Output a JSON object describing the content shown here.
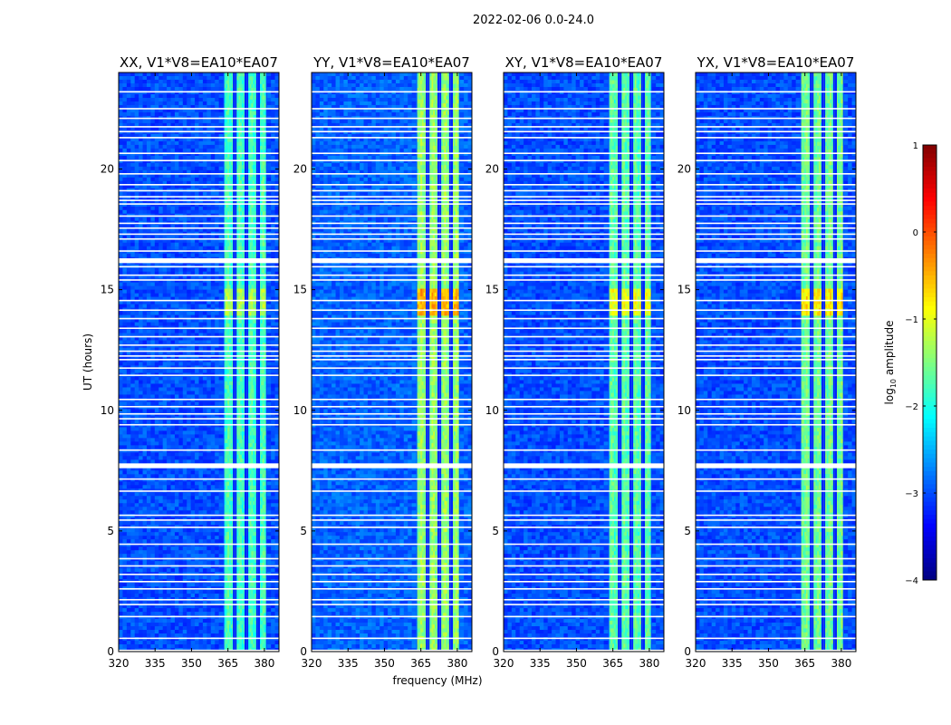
{
  "suptitle": "2022-02-06 0.0-24.0",
  "chart_data": [
    {
      "type": "heatmap",
      "panel": "XX",
      "title": "XX, V1*V8=EA10*EA07",
      "xlabel": "",
      "ylabel": "UT (hours)",
      "xlim": [
        320,
        386
      ],
      "ylim": [
        0,
        24
      ],
      "xticks": [
        320,
        335,
        350,
        365,
        380
      ],
      "yticks": [
        0,
        5,
        10,
        15,
        20
      ],
      "signal_band_mhz": [
        363.5,
        380.5
      ],
      "channel_gaps_mhz": [
        367.4,
        368.2,
        372.2,
        373.0,
        377.0,
        377.8
      ],
      "background_log10_amplitude": -3.0,
      "band_log10_amplitude": -1.8,
      "peak_log10_amplitude": -1.3,
      "peak_ut_hours": [
        14.0,
        15.0
      ],
      "flagged_ut_hours": [
        [
          7.6,
          7.8
        ],
        [
          16.1,
          16.3
        ]
      ],
      "seed": 11
    },
    {
      "type": "heatmap",
      "panel": "YY",
      "title": "YY, V1*V8=EA10*EA07",
      "xlabel": "frequency (MHz)",
      "ylabel": "",
      "xlim": [
        320,
        386
      ],
      "ylim": [
        0,
        24
      ],
      "xticks": [
        320,
        335,
        350,
        365,
        380
      ],
      "yticks": [
        0,
        5,
        10,
        15,
        20
      ],
      "signal_band_mhz": [
        363.5,
        380.5
      ],
      "channel_gaps_mhz": [
        367.4,
        368.2,
        372.2,
        373.0,
        377.0,
        377.8
      ],
      "background_log10_amplitude": -2.9,
      "band_log10_amplitude": -1.4,
      "peak_log10_amplitude": -0.5,
      "peak_ut_hours": [
        14.0,
        15.0
      ],
      "flagged_ut_hours": [
        [
          7.6,
          7.8
        ],
        [
          16.1,
          16.3
        ]
      ],
      "seed": 23
    },
    {
      "type": "heatmap",
      "panel": "XY",
      "title": "XY, V1*V8=EA10*EA07",
      "xlabel": "",
      "ylabel": "",
      "xlim": [
        320,
        386
      ],
      "ylim": [
        0,
        24
      ],
      "xticks": [
        320,
        335,
        350,
        365,
        380
      ],
      "yticks": [
        0,
        5,
        10,
        15,
        20
      ],
      "signal_band_mhz": [
        363.5,
        380.5
      ],
      "channel_gaps_mhz": [
        367.4,
        368.2,
        372.2,
        373.0,
        377.0,
        377.8
      ],
      "background_log10_amplitude": -3.0,
      "band_log10_amplitude": -1.7,
      "peak_log10_amplitude": -1.0,
      "peak_ut_hours": [
        14.0,
        15.0
      ],
      "flagged_ut_hours": [
        [
          7.6,
          7.8
        ],
        [
          16.1,
          16.3
        ]
      ],
      "seed": 37
    },
    {
      "type": "heatmap",
      "panel": "YX",
      "title": "YX, V1*V8=EA10*EA07",
      "xlabel": "",
      "ylabel": "",
      "xlim": [
        320,
        386
      ],
      "ylim": [
        0,
        24
      ],
      "xticks": [
        320,
        335,
        350,
        365,
        380
      ],
      "yticks": [
        0,
        5,
        10,
        15,
        20
      ],
      "signal_band_mhz": [
        363.5,
        380.5
      ],
      "channel_gaps_mhz": [
        367.4,
        368.2,
        372.2,
        373.0,
        377.0,
        377.8
      ],
      "background_log10_amplitude": -3.0,
      "band_log10_amplitude": -1.6,
      "peak_log10_amplitude": -0.8,
      "peak_ut_hours": [
        14.0,
        15.0
      ],
      "flagged_ut_hours": [
        [
          7.6,
          7.8
        ],
        [
          16.1,
          16.3
        ]
      ],
      "seed": 53
    }
  ],
  "colorbar": {
    "label": "log10 amplitude",
    "label_main": "log",
    "label_sub": "10",
    "label_rest": " amplitude",
    "min": -4,
    "max": 1,
    "ticks": [
      1,
      0,
      -1,
      -2,
      -3,
      -4
    ],
    "tick_labels": [
      "1",
      "0",
      "−1",
      "−2",
      "−3",
      "−4"
    ],
    "colormap": "jet"
  },
  "shared_flagged_ut_hours": [
    0.05,
    0.55,
    1.45,
    1.95,
    2.15,
    2.6,
    2.9,
    3.2,
    3.55,
    3.85,
    4.45,
    5.15,
    5.45,
    5.65,
    6.65,
    7.15,
    8.35,
    9.4,
    9.65,
    9.85,
    10.15,
    10.45,
    11.45,
    11.75,
    12.1,
    12.25,
    12.45,
    12.7,
    13.05,
    13.4,
    13.8,
    14.15,
    14.55,
    15.4,
    15.6,
    15.95,
    16.6,
    17.1,
    17.3,
    17.55,
    17.75,
    18.05,
    18.55,
    18.7,
    18.85,
    19.1,
    19.35,
    19.8,
    20.35,
    20.65,
    21.3,
    21.55,
    21.75,
    22.1,
    22.5,
    23.2
  ]
}
